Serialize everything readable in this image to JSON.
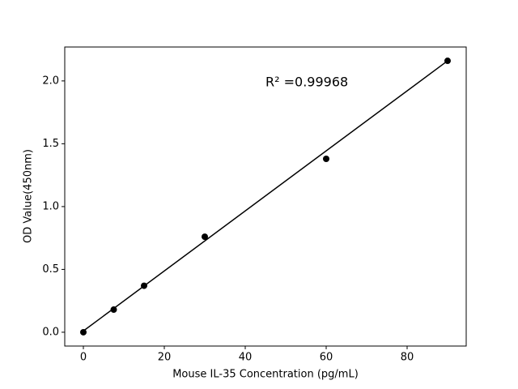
{
  "chart_data": {
    "type": "scatter",
    "xlabel": "Mouse IL-35 Concentration (pg/mL)",
    "ylabel": "OD Value(450nm)",
    "annotation": "R² =0.99968",
    "x": [
      0,
      7.5,
      15,
      30,
      60,
      90
    ],
    "values": [
      0,
      0.18,
      0.37,
      0.76,
      1.38,
      2.16
    ],
    "color": "#000000",
    "fit": {
      "x": [
        0,
        90
      ],
      "values": [
        0.01,
        2.16
      ],
      "color": "#000000"
    },
    "xlim": [
      -4.6,
      94.6
    ],
    "ylim": [
      -0.11,
      2.27
    ],
    "xticks": [
      0,
      20,
      40,
      60,
      80
    ],
    "yticks": [
      {
        "value": 0,
        "label": "0.0"
      },
      {
        "value": 0.5,
        "label": "0.5"
      },
      {
        "value": 1,
        "label": "1.0"
      },
      {
        "value": 1.5,
        "label": "1.5"
      },
      {
        "value": 2,
        "label": "2.0"
      }
    ]
  }
}
